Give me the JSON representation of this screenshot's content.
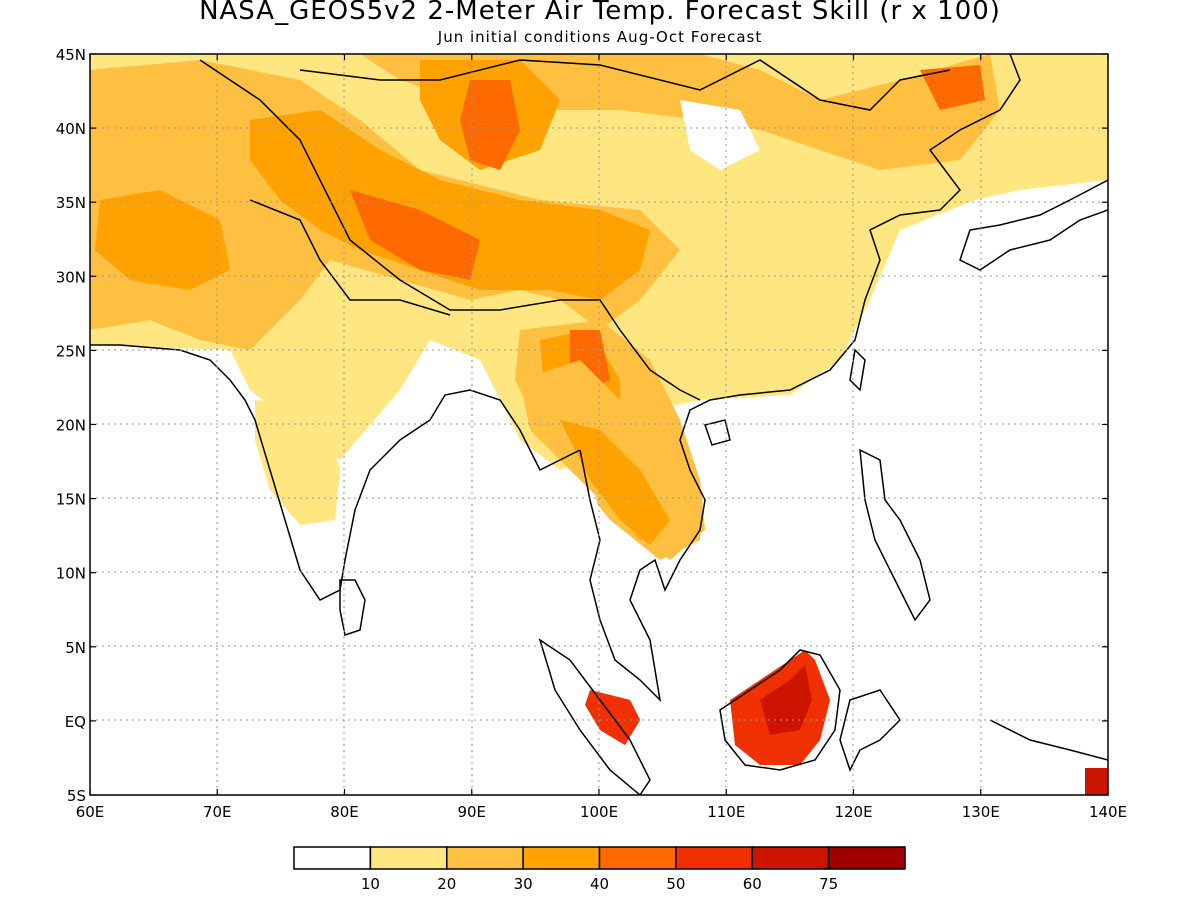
{
  "title": "NASA_GEOS5v2 2-Meter Air Temp. Forecast Skill (r x 100)",
  "subtitle": "Jun initial conditions  Aug-Oct Forecast",
  "map": {
    "lon_range": [
      60,
      140
    ],
    "lat_range": [
      -5,
      45
    ],
    "lon_ticks": [
      "60E",
      "70E",
      "80E",
      "90E",
      "100E",
      "110E",
      "120E",
      "130E",
      "140E"
    ],
    "lat_ticks": [
      "45N",
      "40N",
      "35N",
      "30N",
      "25N",
      "20N",
      "15N",
      "10N",
      "5N",
      "EQ",
      "5S"
    ],
    "grid": true
  },
  "colorbar": {
    "colors": [
      "#ffffff",
      "#ffe680",
      "#ffbf40",
      "#ffa200",
      "#ff6a00",
      "#f03000",
      "#cc1400",
      "#a00000"
    ],
    "labels": [
      "10",
      "20",
      "30",
      "40",
      "50",
      "60",
      "75"
    ]
  }
}
